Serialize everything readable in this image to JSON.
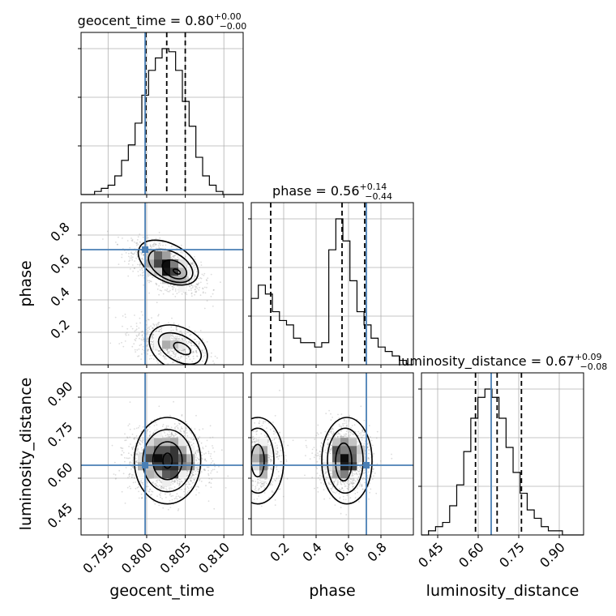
{
  "chart_data": {
    "type": "corner",
    "parameters": [
      "geocent_time",
      "phase",
      "luminosity_distance"
    ],
    "titles": [
      {
        "param": "geocent_time",
        "text": "geocent_time = 0.80",
        "plus": "+0.00",
        "minus": "−0.00"
      },
      {
        "param": "phase",
        "text": "phase = 0.56",
        "plus": "+0.14",
        "minus": "−0.44"
      },
      {
        "param": "luminosity_distance",
        "text": "luminosity_distance = 0.67",
        "plus": "+0.09",
        "minus": "−0.08"
      }
    ],
    "ranges": {
      "geocent_time": [
        0.7915,
        0.8125
      ],
      "phase": [
        0.0,
        1.0
      ],
      "luminosity_distance": [
        0.39,
        0.99
      ]
    },
    "ticks": {
      "geocent_time": {
        "values": [
          0.795,
          0.8,
          0.805,
          0.81
        ],
        "labels": [
          "0.795",
          "0.800",
          "0.805",
          "0.810"
        ]
      },
      "phase": {
        "values": [
          0.2,
          0.4,
          0.6,
          0.8
        ],
        "labels": [
          "0.2",
          "0.4",
          "0.6",
          "0.8"
        ]
      },
      "luminosity_distance": {
        "values": [
          0.45,
          0.6,
          0.75,
          0.9
        ],
        "labels": [
          "0.45",
          "0.60",
          "0.75",
          "0.90"
        ]
      }
    },
    "truths": {
      "geocent_time": 0.7998,
      "phase": 0.71,
      "luminosity_distance": 0.648
    },
    "quantiles": {
      "geocent_time": [
        0.7999,
        0.8026,
        0.805
      ],
      "phase": [
        0.12,
        0.56,
        0.7
      ],
      "luminosity_distance": [
        0.59,
        0.67,
        0.76
      ]
    },
    "histograms": {
      "geocent_time": [
        0,
        0,
        1,
        2,
        3,
        6,
        11,
        16,
        23,
        32,
        40,
        44,
        47,
        46,
        40,
        30,
        22,
        12,
        6,
        3,
        1,
        0,
        0,
        0
      ],
      "phase": [
        15,
        18,
        16,
        12,
        10,
        9,
        6,
        5,
        5,
        4,
        5,
        26,
        33,
        28,
        19,
        12,
        9,
        6,
        4,
        3,
        2,
        1,
        0
      ],
      "luminosity_distance": [
        0,
        1,
        2,
        3,
        7,
        12,
        20,
        28,
        33,
        35,
        33,
        28,
        21,
        15,
        10,
        6,
        4,
        2,
        1,
        1,
        0,
        0,
        0
      ]
    },
    "grid": true
  }
}
